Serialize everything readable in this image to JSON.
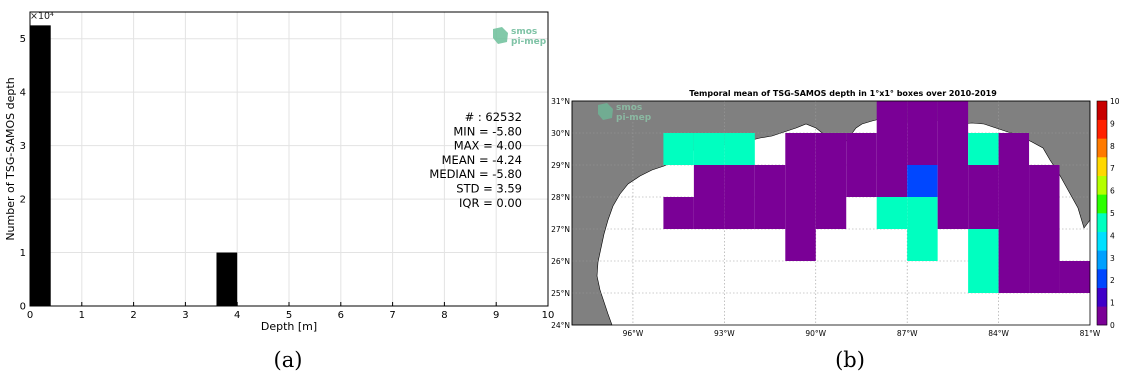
{
  "chart_data": [
    {
      "type": "bar",
      "panel_label": "(a)",
      "xlabel": "Depth [m]",
      "ylabel": "Number of TSG-SAMOS depth",
      "exponent_label": "×10⁴",
      "xlim": [
        0,
        10
      ],
      "ylim": [
        0,
        5.5
      ],
      "x_ticks": [
        "0",
        "1",
        "2",
        "3",
        "4",
        "5",
        "6",
        "7",
        "8",
        "9",
        "10"
      ],
      "y_ticks": [
        "0",
        "1",
        "2",
        "3",
        "4",
        "5"
      ],
      "grid": true,
      "bins": [
        {
          "x_start": 0.0,
          "x_end": 0.4,
          "value": 5.25
        },
        {
          "x_start": 3.6,
          "x_end": 4.0,
          "value": 1.0
        }
      ],
      "bar_color": "#000000",
      "stats": [
        "# : 62532",
        "MIN = -5.80",
        "MAX =  4.00",
        "MEAN = -4.24",
        "MEDIAN = -5.80",
        "STD = 3.59",
        "IQR = 0.00"
      ],
      "logo": [
        "smos",
        "pi-mep"
      ]
    },
    {
      "type": "heatmap",
      "panel_label": "(b)",
      "title": "Temporal mean of TSG-SAMOS depth in 1°x1° boxes over 2010-2019",
      "lon_ticks": [
        "96°W",
        "93°W",
        "90°W",
        "87°W",
        "84°W",
        "81°W"
      ],
      "lat_ticks": [
        "24°N",
        "25°N",
        "26°N",
        "27°N",
        "28°N",
        "29°N",
        "30°N",
        "31°N"
      ],
      "colorbar_ticks": [
        "0",
        "1",
        "2",
        "3",
        "4",
        "5",
        "6",
        "7",
        "8",
        "9",
        "10"
      ],
      "colorbar_range": [
        0,
        10
      ],
      "colormap": [
        "#7a0096",
        "#3f00c8",
        "#0047ff",
        "#00a0ff",
        "#00e0ff",
        "#00ffc0",
        "#2cff00",
        "#b4ff00",
        "#ffd800",
        "#ff7a00",
        "#ff2000",
        "#c80000"
      ],
      "cells": [
        {
          "lon": -95,
          "lat": 29,
          "value": 4.5
        },
        {
          "lon": -94,
          "lat": 29,
          "value": 4.5
        },
        {
          "lon": -93,
          "lat": 29,
          "value": 4.5
        },
        {
          "lon": -91,
          "lat": 29,
          "value": 0
        },
        {
          "lon": -90,
          "lat": 29,
          "value": 0
        },
        {
          "lon": -89,
          "lat": 29,
          "value": 0
        },
        {
          "lon": -88,
          "lat": 29,
          "value": 0
        },
        {
          "lon": -87,
          "lat": 29,
          "value": 0
        },
        {
          "lon": -86,
          "lat": 29,
          "value": 0
        },
        {
          "lon": -85,
          "lat": 29,
          "value": 4.5
        },
        {
          "lon": -84,
          "lat": 29,
          "value": 0
        },
        {
          "lon": -88,
          "lat": 30,
          "value": 0
        },
        {
          "lon": -87,
          "lat": 30,
          "value": 0
        },
        {
          "lon": -86,
          "lat": 30,
          "value": 0
        },
        {
          "lon": -94,
          "lat": 28,
          "value": 0
        },
        {
          "lon": -93,
          "lat": 28,
          "value": 0
        },
        {
          "lon": -92,
          "lat": 28,
          "value": 0
        },
        {
          "lon": -91,
          "lat": 28,
          "value": 0
        },
        {
          "lon": -90,
          "lat": 28,
          "value": 0
        },
        {
          "lon": -89,
          "lat": 28,
          "value": 0.8
        },
        {
          "lon": -88,
          "lat": 28,
          "value": 0
        },
        {
          "lon": -87,
          "lat": 28,
          "value": 2.4
        },
        {
          "lon": -86,
          "lat": 28,
          "value": 0
        },
        {
          "lon": -85,
          "lat": 28,
          "value": 0
        },
        {
          "lon": -84,
          "lat": 28,
          "value": 0
        },
        {
          "lon": -83,
          "lat": 28,
          "value": 0
        },
        {
          "lon": -95,
          "lat": 27,
          "value": 0
        },
        {
          "lon": -94,
          "lat": 27,
          "value": 0
        },
        {
          "lon": -93,
          "lat": 27,
          "value": 0
        },
        {
          "lon": -92,
          "lat": 27,
          "value": 0
        },
        {
          "lon": -91,
          "lat": 27,
          "value": 0
        },
        {
          "lon": -90,
          "lat": 27,
          "value": 0
        },
        {
          "lon": -88,
          "lat": 27,
          "value": 4.5
        },
        {
          "lon": -87,
          "lat": 27,
          "value": 4.5
        },
        {
          "lon": -86,
          "lat": 27,
          "value": 0
        },
        {
          "lon": -85,
          "lat": 27,
          "value": 0
        },
        {
          "lon": -84,
          "lat": 27,
          "value": 0
        },
        {
          "lon": -83,
          "lat": 27,
          "value": 0
        },
        {
          "lon": -91,
          "lat": 26,
          "value": 0
        },
        {
          "lon": -87,
          "lat": 26,
          "value": 4.5
        },
        {
          "lon": -85,
          "lat": 26,
          "value": 4.5
        },
        {
          "lon": -84,
          "lat": 26,
          "value": 0
        },
        {
          "lon": -83,
          "lat": 26,
          "value": 0
        },
        {
          "lon": -85,
          "lat": 25,
          "value": 4.5
        },
        {
          "lon": -84,
          "lat": 25,
          "value": 0
        },
        {
          "lon": -83,
          "lat": 25,
          "value": 0
        },
        {
          "lon": -82,
          "lat": 25,
          "value": 0
        }
      ],
      "logo": [
        "smos",
        "pi-mep"
      ]
    }
  ]
}
